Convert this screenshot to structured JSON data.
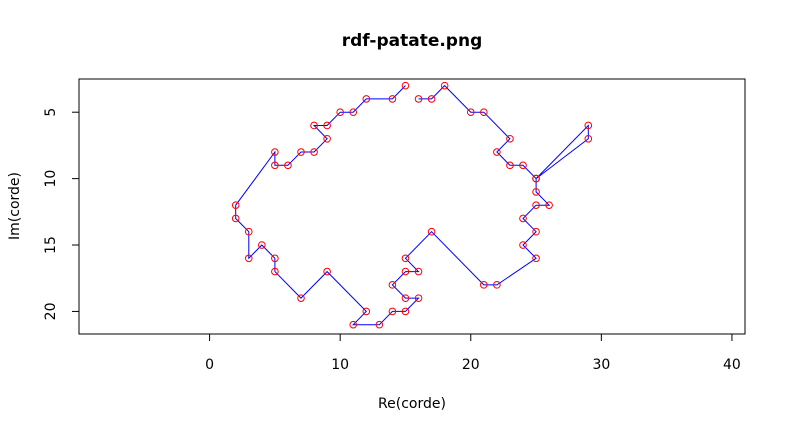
{
  "chart_data": {
    "type": "scatter",
    "title": "rdf-patate.png",
    "xlabel": "Re(corde)",
    "ylabel": "Im(corde)",
    "xlim": [
      -10,
      41
    ],
    "ylim": [
      21.7,
      2.5
    ],
    "y_reversed": true,
    "x_ticks": [
      0,
      10,
      20,
      30,
      40
    ],
    "y_ticks": [
      5,
      10,
      15,
      20
    ],
    "x_tick_labels": [
      "0",
      "10",
      "20",
      "30",
      "40"
    ],
    "y_tick_labels": [
      "5",
      "10",
      "15",
      "20"
    ],
    "line_color": "#0000ff",
    "point_color": "#ff0000",
    "series": [
      {
        "x": [
          15,
          14,
          12,
          11,
          10,
          9,
          8,
          9,
          8,
          7,
          6,
          5,
          5,
          2,
          2,
          3,
          3,
          4,
          5,
          5,
          7,
          9,
          12,
          11,
          13,
          14,
          15,
          16,
          15,
          14,
          15,
          16,
          15,
          17,
          21,
          22,
          25,
          24,
          25,
          24,
          25,
          26,
          25,
          25,
          29,
          29,
          25,
          24,
          23,
          22,
          23,
          21,
          20,
          18,
          17,
          16
        ],
        "y": [
          3,
          4,
          4,
          5,
          5,
          6,
          6,
          7,
          8,
          8,
          9,
          9,
          8,
          12,
          13,
          14,
          16,
          15,
          16,
          17,
          19,
          17,
          20,
          21,
          21,
          20,
          20,
          19,
          19,
          18,
          17,
          17,
          16,
          14,
          18,
          18,
          16,
          15,
          14,
          13,
          12,
          12,
          11,
          10,
          6,
          7,
          10,
          9,
          9,
          8,
          7,
          5,
          5,
          3,
          4,
          4
        ]
      }
    ]
  }
}
